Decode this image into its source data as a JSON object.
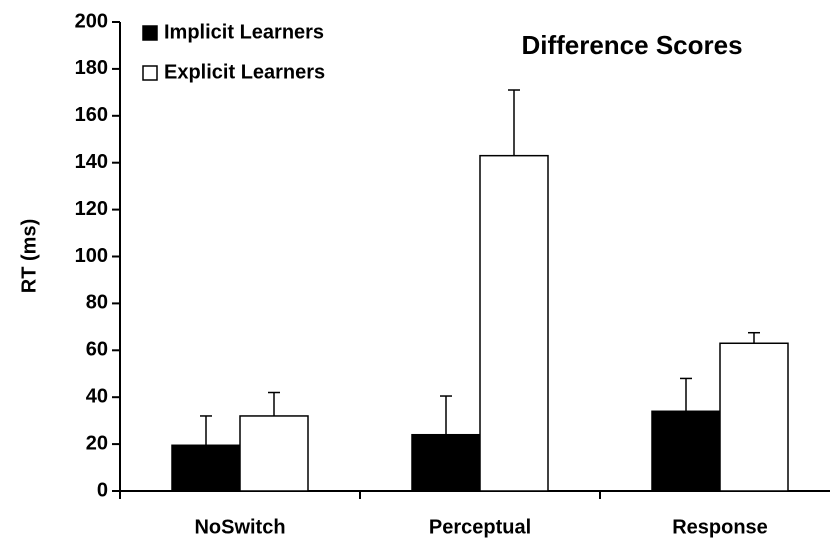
{
  "chart_data": {
    "type": "bar",
    "title": "Difference Scores",
    "y_label": "RT (ms)",
    "categories": [
      "NoSwitch",
      "Perceptual",
      "Response"
    ],
    "series": [
      {
        "name": "Implicit Learners",
        "color": "#000000",
        "values": [
          19.5,
          24,
          34
        ],
        "errors": [
          12.5,
          16.5,
          14
        ]
      },
      {
        "name": "Explicit Learners",
        "color": "#ffffff",
        "values": [
          32,
          143,
          63
        ],
        "errors": [
          10,
          28,
          4.5
        ]
      }
    ],
    "ylim": [
      0,
      200
    ],
    "yticks": [
      0,
      20,
      40,
      60,
      80,
      100,
      120,
      140,
      160,
      180,
      200
    ],
    "grid": false,
    "legend": "upper left"
  }
}
